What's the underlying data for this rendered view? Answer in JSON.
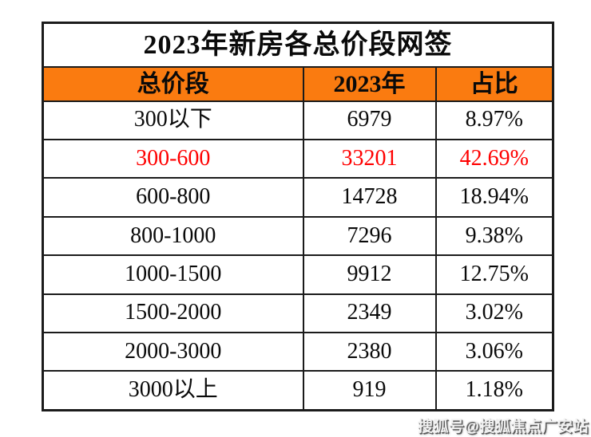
{
  "table": {
    "title": "2023年新房各总价段网签",
    "columns": [
      "总价段",
      "2023年",
      "占比"
    ],
    "rows": [
      {
        "range": "300以下",
        "count": "6979",
        "share": "8.97%",
        "highlight": false
      },
      {
        "range": "300-600",
        "count": "33201",
        "share": "42.69%",
        "highlight": true
      },
      {
        "range": "600-800",
        "count": "14728",
        "share": "18.94%",
        "highlight": false
      },
      {
        "range": "800-1000",
        "count": "7296",
        "share": "9.38%",
        "highlight": false
      },
      {
        "range": "1000-1500",
        "count": "9912",
        "share": "12.75%",
        "highlight": false
      },
      {
        "range": "1500-2000",
        "count": "2349",
        "share": "3.02%",
        "highlight": false
      },
      {
        "range": "2000-3000",
        "count": "2380",
        "share": "3.06%",
        "highlight": false
      },
      {
        "range": "3000以上",
        "count": "919",
        "share": "1.18%",
        "highlight": false
      }
    ]
  },
  "watermark": {
    "text": "搜狐号@搜狐焦点广安站"
  },
  "colors": {
    "header_bg": "#FA7B10",
    "highlight_text": "#FF0000",
    "border": "#1B1B1B"
  },
  "chart_data": {
    "type": "table",
    "title": "2023年新房各总价段网签",
    "columns": [
      "总价段",
      "2023年",
      "占比"
    ],
    "categories": [
      "300以下",
      "300-600",
      "600-800",
      "800-1000",
      "1000-1500",
      "1500-2000",
      "2000-3000",
      "3000以上"
    ],
    "series": [
      {
        "name": "2023年",
        "values": [
          6979,
          33201,
          14728,
          7296,
          9912,
          2349,
          2380,
          919
        ]
      },
      {
        "name": "占比",
        "values": [
          "8.97%",
          "42.69%",
          "18.94%",
          "9.38%",
          "12.75%",
          "3.02%",
          "3.06%",
          "1.18%"
        ]
      }
    ],
    "layout_hints": {
      "highlighted_row": "300-600",
      "highlight_color": "#FF0000",
      "header_bg": "#FA7B10"
    }
  }
}
